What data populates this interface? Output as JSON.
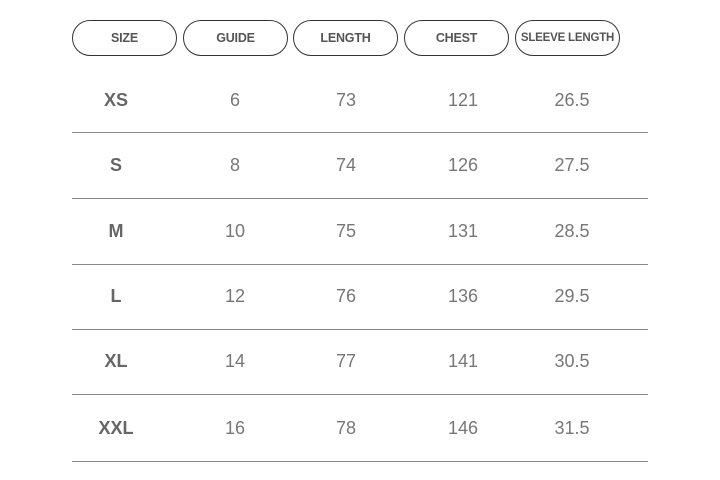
{
  "table": {
    "headers": [
      "SIZE",
      "GUIDE",
      "LENGTH",
      "CHEST",
      "SLEEVE LENGTH"
    ],
    "rows": [
      [
        "XS",
        "6",
        "73",
        "121",
        "26.5"
      ],
      [
        "S",
        "8",
        "74",
        "126",
        "27.5"
      ],
      [
        "M",
        "10",
        "75",
        "131",
        "28.5"
      ],
      [
        "L",
        "12",
        "76",
        "136",
        "29.5"
      ],
      [
        "XL",
        "14",
        "77",
        "141",
        "30.5"
      ],
      [
        "XXL",
        "16",
        "78",
        "146",
        "31.5"
      ]
    ]
  }
}
